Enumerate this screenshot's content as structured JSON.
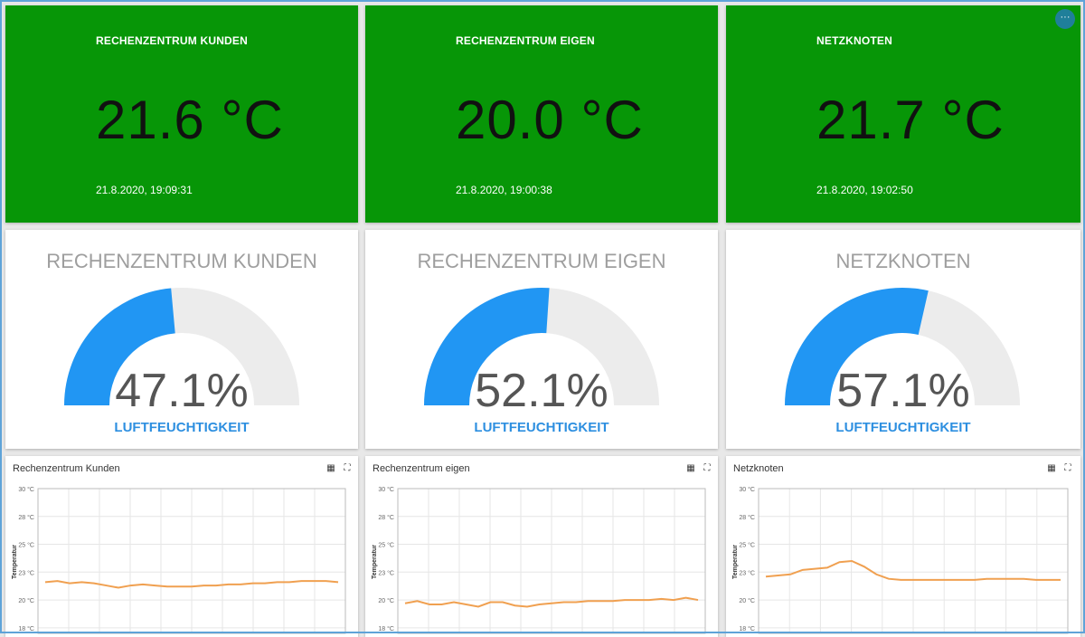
{
  "tiles": [
    {
      "title": "RECHENZENTRUM KUNDEN",
      "value": "21.6 °C",
      "time": "21.8.2020, 19:09:31"
    },
    {
      "title": "RECHENZENTRUM EIGEN",
      "value": "20.0 °C",
      "time": "21.8.2020, 19:00:38"
    },
    {
      "title": "NETZKNOTEN",
      "value": "21.7 °C",
      "time": "21.8.2020, 19:02:50"
    }
  ],
  "gauges": [
    {
      "title": "RECHENZENTRUM KUNDEN",
      "value_text": "47.1%",
      "value": 47.1,
      "label": "LUFTFEUCHTIGKEIT"
    },
    {
      "title": "RECHENZENTRUM EIGEN",
      "value_text": "52.1%",
      "value": 52.1,
      "label": "LUFTFEUCHTIGKEIT"
    },
    {
      "title": "NETZKNOTEN",
      "value_text": "57.1%",
      "value": 57.1,
      "label": "LUFTFEUCHTIGKEIT"
    }
  ],
  "colors": {
    "tile_green": "#079607",
    "gauge_fill": "#2196f3",
    "gauge_track": "#ececec",
    "series": "#f0a050"
  },
  "menu": {
    "icon": "more-icon",
    "label": "···"
  },
  "chart_data": [
    {
      "type": "line",
      "title": "Rechenzentrum Kunden",
      "ylabel": "Temperatur",
      "ylim": [
        17,
        30
      ],
      "yticks": [
        "30 °C",
        "28 °C",
        "25 °C",
        "23 °C",
        "20 °C",
        "18 °C"
      ],
      "icons": [
        "export-icon",
        "fullscreen-icon"
      ],
      "series": [
        {
          "values": [
            21.6,
            21.7,
            21.5,
            21.6,
            21.5,
            21.3,
            21.1,
            21.3,
            21.4,
            21.3,
            21.2,
            21.2,
            21.2,
            21.3,
            21.3,
            21.4,
            21.4,
            21.5,
            21.5,
            21.6,
            21.6,
            21.7,
            21.7,
            21.7,
            21.6
          ]
        }
      ]
    },
    {
      "type": "line",
      "title": "Rechenzentrum eigen",
      "ylabel": "Temperatur",
      "ylim": [
        17,
        30
      ],
      "yticks": [
        "30 °C",
        "28 °C",
        "25 °C",
        "23 °C",
        "20 °C",
        "18 °C"
      ],
      "icons": [
        "export-icon",
        "fullscreen-icon"
      ],
      "series": [
        {
          "values": [
            19.7,
            19.9,
            19.6,
            19.6,
            19.8,
            19.6,
            19.4,
            19.8,
            19.8,
            19.5,
            19.4,
            19.6,
            19.7,
            19.8,
            19.8,
            19.9,
            19.9,
            19.9,
            20.0,
            20.0,
            20.0,
            20.1,
            20.0,
            20.2,
            20.0
          ]
        }
      ]
    },
    {
      "type": "line",
      "title": "Netzknoten",
      "ylabel": "Temperatur",
      "ylim": [
        17,
        30
      ],
      "yticks": [
        "30 °C",
        "28 °C",
        "25 °C",
        "23 °C",
        "20 °C",
        "18 °C"
      ],
      "icons": [
        "export-icon",
        "fullscreen-icon"
      ],
      "series": [
        {
          "values": [
            22.1,
            22.2,
            22.3,
            22.7,
            22.8,
            22.9,
            23.4,
            23.5,
            23.0,
            22.3,
            21.9,
            21.8,
            21.8,
            21.8,
            21.8,
            21.8,
            21.8,
            21.8,
            21.9,
            21.9,
            21.9,
            21.9,
            21.8,
            21.8,
            21.8
          ]
        }
      ]
    }
  ]
}
